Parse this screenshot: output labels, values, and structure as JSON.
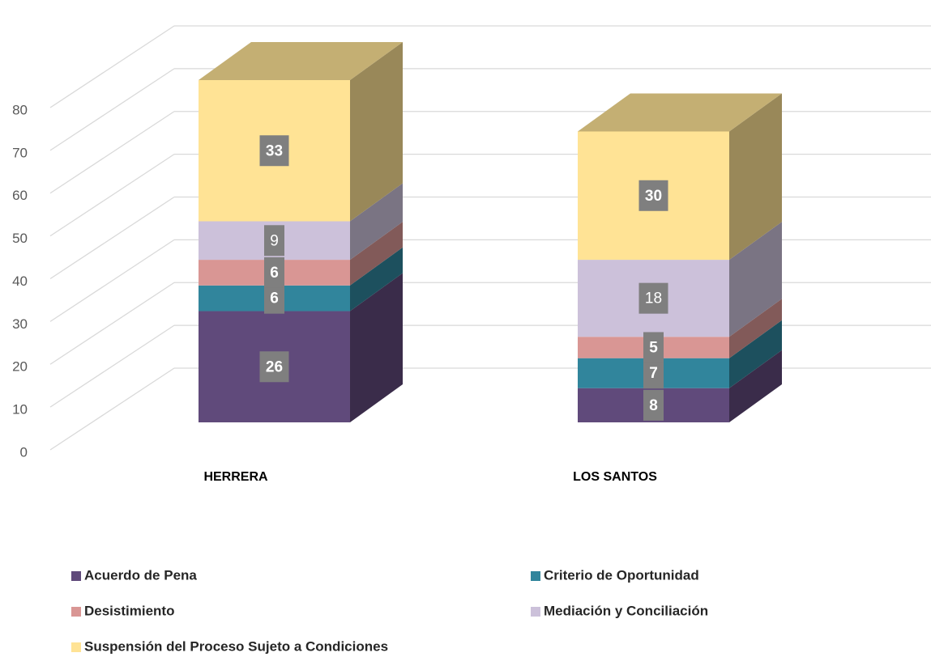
{
  "chart_data": {
    "type": "bar3d_stacked",
    "categories": [
      "HERRERA",
      "LOS SANTOS"
    ],
    "series": [
      {
        "name": "Acuerdo de Pena",
        "color": "#604a7b",
        "values": [
          26,
          8
        ]
      },
      {
        "name": "Criterio de Oportunidad",
        "color": "#31859c",
        "values": [
          6,
          7
        ]
      },
      {
        "name": "Desistimiento",
        "color": "#d99694",
        "values": [
          6,
          5
        ]
      },
      {
        "name": "Mediación y Conciliación",
        "color": "#ccc1da",
        "values": [
          9,
          18
        ]
      },
      {
        "name": "Suspensión del Proceso Sujeto a Condiciones",
        "color": "#ffe395",
        "values": [
          33,
          30
        ]
      }
    ],
    "ylim": [
      0,
      80
    ],
    "yticks": [
      0,
      10,
      20,
      30,
      40,
      50,
      60,
      70,
      80
    ],
    "grid": true
  }
}
